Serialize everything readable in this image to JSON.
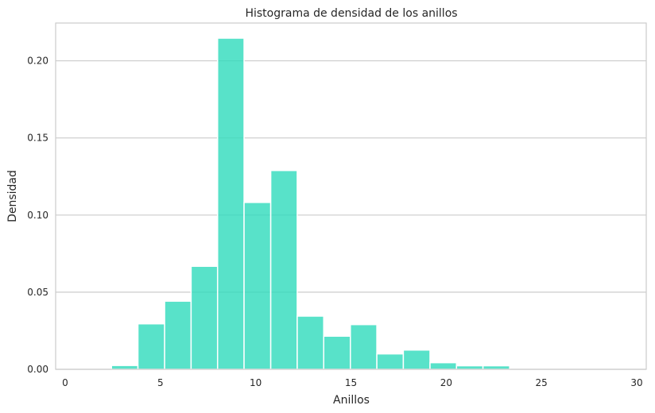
{
  "chart_data": {
    "type": "bar",
    "title": "Histograma de densidad de los anillos",
    "xlabel": "Anillos",
    "ylabel": "Densidad",
    "xlim": [
      -0.5,
      30.5
    ],
    "ylim": [
      0,
      0.2245
    ],
    "xticks": [
      0,
      5,
      10,
      15,
      20,
      25,
      30
    ],
    "xtick_labels": [
      "0",
      "5",
      "10",
      "15",
      "20",
      "25",
      "30"
    ],
    "yticks": [
      0,
      0.05,
      0.1,
      0.15,
      0.2
    ],
    "ytick_labels": [
      "0.00",
      "0.05",
      "0.10",
      "0.15",
      "0.20"
    ],
    "grid": "y",
    "bar_color": "#2edbbb",
    "bins": [
      {
        "x0": 2.43,
        "x1": 3.82,
        "value": 0.0025
      },
      {
        "x0": 3.82,
        "x1": 5.22,
        "value": 0.0295
      },
      {
        "x0": 5.22,
        "x1": 6.61,
        "value": 0.0442
      },
      {
        "x0": 6.61,
        "x1": 8.0,
        "value": 0.0668
      },
      {
        "x0": 8.0,
        "x1": 9.39,
        "value": 0.2147
      },
      {
        "x0": 9.39,
        "x1": 10.79,
        "value": 0.1082
      },
      {
        "x0": 10.79,
        "x1": 12.18,
        "value": 0.1289
      },
      {
        "x0": 12.18,
        "x1": 13.57,
        "value": 0.0345
      },
      {
        "x0": 13.57,
        "x1": 14.97,
        "value": 0.0215
      },
      {
        "x0": 14.97,
        "x1": 16.36,
        "value": 0.029
      },
      {
        "x0": 16.36,
        "x1": 17.75,
        "value": 0.01
      },
      {
        "x0": 17.75,
        "x1": 19.15,
        "value": 0.0125
      },
      {
        "x0": 19.15,
        "x1": 20.54,
        "value": 0.0043
      },
      {
        "x0": 20.54,
        "x1": 21.93,
        "value": 0.0023
      },
      {
        "x0": 21.93,
        "x1": 23.33,
        "value": 0.0023
      },
      {
        "x0": 23.33,
        "x1": 24.72,
        "value": 0
      },
      {
        "x0": 24.72,
        "x1": 26.11,
        "value": 0
      },
      {
        "x0": 26.11,
        "x1": 27.51,
        "value": 0
      },
      {
        "x0": 27.51,
        "x1": 28.9,
        "value": 0
      }
    ]
  }
}
